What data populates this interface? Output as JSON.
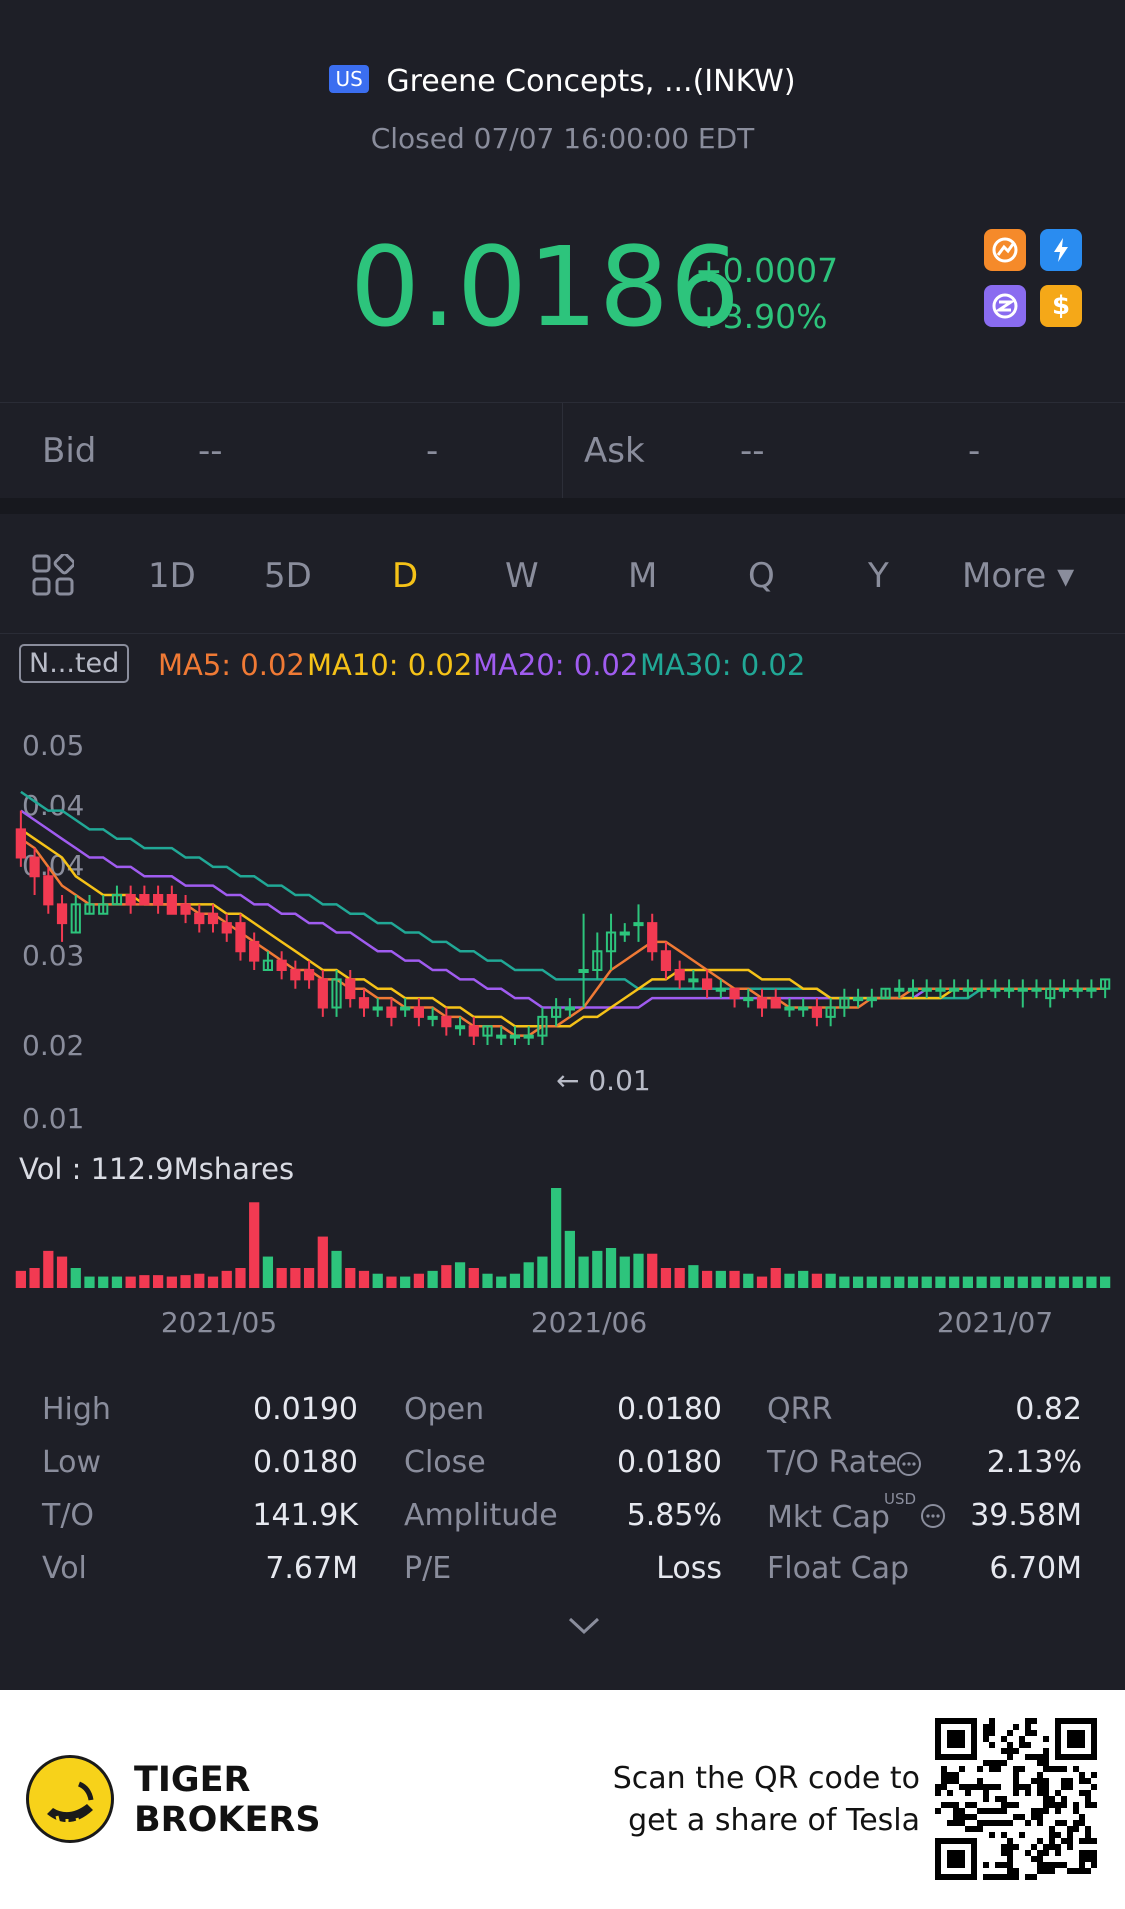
{
  "header": {
    "market_flag": "US",
    "title": "Greene Concepts, ...(INKW)",
    "status": "Closed 07/07 16:00:00 EDT",
    "price": "0.0186",
    "change_abs": "+0.0007",
    "change_pct": "+3.90%",
    "up_color": "#2dc47c",
    "badges": [
      "orange-badge-icon",
      "blue-lightning-icon",
      "purple-badge-icon",
      "dollar-icon"
    ]
  },
  "quote": {
    "bid_label": "Bid",
    "bid_price": "--",
    "bid_size": "-",
    "ask_label": "Ask",
    "ask_price": "--",
    "ask_size": "-"
  },
  "tabs": [
    "1D",
    "5D",
    "D",
    "W",
    "M",
    "Q",
    "Y",
    "More ▾"
  ],
  "active_tab": "D",
  "ma": {
    "adjust_label": "N...ted",
    "ma5": "MA5: 0.02",
    "ma10": "MA10: 0.02",
    "ma20": "MA20: 0.02",
    "ma30": "MA30: 0.02",
    "colors": {
      "ma5": "#f07a35",
      "ma10": "#f5c218",
      "ma20": "#a05cf0",
      "ma30": "#21a896"
    }
  },
  "chart_data": {
    "type": "candlestick",
    "y_ticks": [
      "0.05",
      "0.04",
      "0.04",
      "0.03",
      "0.02",
      "0.01"
    ],
    "ylim": [
      0.01,
      0.05
    ],
    "x_ticks": [
      "2021/05",
      "2021/06",
      "2021/07"
    ],
    "low_marker": "0.01",
    "high_marker": "0.04",
    "up_color": "#2dc47c",
    "down_color": "#f23a52",
    "candles": [
      [
        0.041,
        0.038,
        0.043,
        0.037
      ],
      [
        0.038,
        0.036,
        0.039,
        0.034
      ],
      [
        0.036,
        0.033,
        0.037,
        0.032
      ],
      [
        0.033,
        0.031,
        0.034,
        0.029
      ],
      [
        0.03,
        0.033,
        0.034,
        0.03
      ],
      [
        0.032,
        0.033,
        0.034,
        0.032
      ],
      [
        0.032,
        0.033,
        0.034,
        0.032
      ],
      [
        0.033,
        0.034,
        0.035,
        0.033
      ],
      [
        0.034,
        0.033,
        0.035,
        0.032
      ],
      [
        0.034,
        0.033,
        0.035,
        0.033
      ],
      [
        0.034,
        0.033,
        0.035,
        0.032
      ],
      [
        0.034,
        0.032,
        0.035,
        0.032
      ],
      [
        0.033,
        0.032,
        0.034,
        0.031
      ],
      [
        0.032,
        0.031,
        0.033,
        0.03
      ],
      [
        0.032,
        0.031,
        0.033,
        0.03
      ],
      [
        0.031,
        0.03,
        0.032,
        0.029
      ],
      [
        0.031,
        0.028,
        0.032,
        0.027
      ],
      [
        0.029,
        0.027,
        0.03,
        0.026
      ],
      [
        0.026,
        0.027,
        0.028,
        0.026
      ],
      [
        0.027,
        0.026,
        0.028,
        0.025
      ],
      [
        0.026,
        0.025,
        0.027,
        0.024
      ],
      [
        0.026,
        0.025,
        0.027,
        0.024
      ],
      [
        0.025,
        0.022,
        0.026,
        0.021
      ],
      [
        0.022,
        0.025,
        0.026,
        0.021
      ],
      [
        0.025,
        0.023,
        0.026,
        0.022
      ],
      [
        0.023,
        0.022,
        0.024,
        0.021
      ],
      [
        0.022,
        0.022,
        0.023,
        0.021
      ],
      [
        0.022,
        0.021,
        0.023,
        0.02
      ],
      [
        0.022,
        0.022,
        0.023,
        0.021
      ],
      [
        0.022,
        0.021,
        0.023,
        0.02
      ],
      [
        0.021,
        0.021,
        0.022,
        0.02
      ],
      [
        0.021,
        0.02,
        0.022,
        0.019
      ],
      [
        0.02,
        0.02,
        0.021,
        0.019
      ],
      [
        0.02,
        0.019,
        0.021,
        0.018
      ],
      [
        0.019,
        0.02,
        0.02,
        0.018
      ],
      [
        0.019,
        0.019,
        0.02,
        0.018
      ],
      [
        0.019,
        0.019,
        0.02,
        0.018
      ],
      [
        0.019,
        0.019,
        0.02,
        0.018
      ],
      [
        0.019,
        0.021,
        0.022,
        0.018
      ],
      [
        0.021,
        0.022,
        0.023,
        0.02
      ],
      [
        0.022,
        0.022,
        0.023,
        0.021
      ],
      [
        0.026,
        0.026,
        0.032,
        0.022
      ],
      [
        0.026,
        0.028,
        0.03,
        0.025
      ],
      [
        0.028,
        0.03,
        0.032,
        0.026
      ],
      [
        0.03,
        0.03,
        0.031,
        0.029
      ],
      [
        0.031,
        0.031,
        0.033,
        0.029
      ],
      [
        0.031,
        0.028,
        0.032,
        0.027
      ],
      [
        0.028,
        0.026,
        0.029,
        0.025
      ],
      [
        0.026,
        0.025,
        0.027,
        0.024
      ],
      [
        0.025,
        0.025,
        0.026,
        0.024
      ],
      [
        0.025,
        0.024,
        0.026,
        0.023
      ],
      [
        0.024,
        0.024,
        0.025,
        0.023
      ],
      [
        0.024,
        0.023,
        0.024,
        0.022
      ],
      [
        0.023,
        0.023,
        0.024,
        0.022
      ],
      [
        0.023,
        0.022,
        0.024,
        0.021
      ],
      [
        0.023,
        0.022,
        0.024,
        0.022
      ],
      [
        0.022,
        0.022,
        0.023,
        0.021
      ],
      [
        0.022,
        0.022,
        0.023,
        0.021
      ],
      [
        0.022,
        0.021,
        0.023,
        0.02
      ],
      [
        0.021,
        0.022,
        0.023,
        0.02
      ],
      [
        0.022,
        0.023,
        0.024,
        0.021
      ],
      [
        0.023,
        0.023,
        0.024,
        0.022
      ],
      [
        0.023,
        0.023,
        0.024,
        0.022
      ],
      [
        0.023,
        0.024,
        0.024,
        0.023
      ],
      [
        0.024,
        0.024,
        0.025,
        0.023
      ],
      [
        0.024,
        0.024,
        0.025,
        0.023
      ],
      [
        0.024,
        0.024,
        0.025,
        0.023
      ],
      [
        0.024,
        0.024,
        0.025,
        0.023
      ],
      [
        0.024,
        0.024,
        0.025,
        0.023
      ],
      [
        0.024,
        0.024,
        0.025,
        0.023
      ],
      [
        0.024,
        0.024,
        0.025,
        0.023
      ],
      [
        0.024,
        0.024,
        0.025,
        0.023
      ],
      [
        0.024,
        0.024,
        0.025,
        0.023
      ],
      [
        0.024,
        0.024,
        0.025,
        0.022
      ],
      [
        0.024,
        0.024,
        0.025,
        0.023
      ],
      [
        0.023,
        0.024,
        0.025,
        0.022
      ],
      [
        0.024,
        0.024,
        0.025,
        0.023
      ],
      [
        0.024,
        0.024,
        0.025,
        0.023
      ],
      [
        0.024,
        0.024,
        0.025,
        0.023
      ],
      [
        0.024,
        0.025,
        0.025,
        0.023
      ]
    ],
    "ma5": [
      0.04,
      0.039,
      0.037,
      0.035,
      0.034,
      0.033,
      0.033,
      0.033,
      0.033,
      0.033,
      0.033,
      0.033,
      0.033,
      0.032,
      0.032,
      0.031,
      0.03,
      0.029,
      0.028,
      0.027,
      0.026,
      0.026,
      0.025,
      0.025,
      0.024,
      0.024,
      0.023,
      0.023,
      0.022,
      0.022,
      0.022,
      0.021,
      0.021,
      0.02,
      0.02,
      0.02,
      0.019,
      0.019,
      0.02,
      0.02,
      0.021,
      0.022,
      0.024,
      0.026,
      0.027,
      0.028,
      0.029,
      0.029,
      0.028,
      0.027,
      0.026,
      0.025,
      0.024,
      0.024,
      0.023,
      0.023,
      0.022,
      0.022,
      0.022,
      0.022,
      0.022,
      0.022,
      0.023,
      0.023,
      0.023,
      0.024,
      0.024,
      0.024,
      0.024,
      0.024,
      0.024,
      0.024,
      0.024,
      0.024,
      0.024,
      0.024,
      0.024,
      0.024,
      0.024,
      0.024
    ],
    "ma10": [
      0.041,
      0.04,
      0.039,
      0.038,
      0.036,
      0.035,
      0.034,
      0.034,
      0.034,
      0.033,
      0.033,
      0.033,
      0.033,
      0.033,
      0.033,
      0.032,
      0.032,
      0.031,
      0.03,
      0.029,
      0.028,
      0.027,
      0.026,
      0.026,
      0.025,
      0.025,
      0.024,
      0.024,
      0.023,
      0.023,
      0.023,
      0.022,
      0.022,
      0.021,
      0.021,
      0.021,
      0.02,
      0.02,
      0.02,
      0.02,
      0.02,
      0.021,
      0.021,
      0.022,
      0.023,
      0.024,
      0.025,
      0.025,
      0.026,
      0.026,
      0.026,
      0.026,
      0.026,
      0.026,
      0.025,
      0.025,
      0.025,
      0.024,
      0.024,
      0.023,
      0.023,
      0.023,
      0.023,
      0.023,
      0.023,
      0.023,
      0.023,
      0.023,
      0.024,
      0.024,
      0.024,
      0.024,
      0.024,
      0.024,
      0.024,
      0.024,
      0.024,
      0.024,
      0.024,
      0.024
    ],
    "ma20": [
      0.043,
      0.042,
      0.041,
      0.04,
      0.039,
      0.038,
      0.038,
      0.037,
      0.037,
      0.036,
      0.036,
      0.036,
      0.035,
      0.035,
      0.035,
      0.034,
      0.034,
      0.033,
      0.033,
      0.032,
      0.032,
      0.031,
      0.031,
      0.03,
      0.03,
      0.029,
      0.028,
      0.028,
      0.027,
      0.027,
      0.026,
      0.026,
      0.025,
      0.025,
      0.024,
      0.024,
      0.023,
      0.023,
      0.022,
      0.022,
      0.022,
      0.022,
      0.022,
      0.022,
      0.022,
      0.022,
      0.023,
      0.023,
      0.023,
      0.023,
      0.023,
      0.023,
      0.023,
      0.023,
      0.023,
      0.023,
      0.023,
      0.023,
      0.023,
      0.023,
      0.023,
      0.023,
      0.023,
      0.023,
      0.023,
      0.023,
      0.024,
      0.024,
      0.024,
      0.024,
      0.024,
      0.024,
      0.024,
      0.024,
      0.024,
      0.024,
      0.024,
      0.024,
      0.024,
      0.024
    ],
    "ma30": [
      0.045,
      0.044,
      0.043,
      0.043,
      0.042,
      0.041,
      0.041,
      0.04,
      0.04,
      0.039,
      0.039,
      0.039,
      0.038,
      0.038,
      0.037,
      0.037,
      0.036,
      0.036,
      0.035,
      0.035,
      0.034,
      0.034,
      0.033,
      0.033,
      0.032,
      0.032,
      0.031,
      0.031,
      0.03,
      0.03,
      0.029,
      0.029,
      0.028,
      0.028,
      0.027,
      0.027,
      0.026,
      0.026,
      0.026,
      0.025,
      0.025,
      0.025,
      0.025,
      0.025,
      0.025,
      0.024,
      0.024,
      0.024,
      0.024,
      0.024,
      0.024,
      0.024,
      0.024,
      0.024,
      0.024,
      0.024,
      0.024,
      0.024,
      0.024,
      0.023,
      0.023,
      0.023,
      0.023,
      0.023,
      0.023,
      0.023,
      0.023,
      0.023,
      0.023,
      0.023,
      0.024,
      0.024,
      0.024,
      0.024,
      0.024,
      0.024,
      0.024,
      0.024,
      0.024,
      0.024
    ],
    "volume_label": "Vol  : 112.9Mshares",
    "volumes": [
      12,
      14,
      26,
      22,
      14,
      8,
      8,
      8,
      8,
      9,
      9,
      8,
      9,
      10,
      8,
      12,
      14,
      60,
      22,
      14,
      14,
      14,
      36,
      26,
      14,
      12,
      10,
      8,
      8,
      10,
      12,
      16,
      18,
      14,
      10,
      8,
      10,
      18,
      22,
      70,
      40,
      22,
      26,
      28,
      22,
      24,
      24,
      14,
      14,
      16,
      12,
      12,
      12,
      10,
      8,
      14,
      10,
      12,
      10,
      10,
      8,
      8,
      8,
      8,
      8,
      8,
      8,
      8,
      8,
      8,
      8,
      8,
      8,
      8,
      8,
      8,
      8,
      8,
      8,
      8
    ]
  },
  "stats": [
    {
      "label": "High",
      "value": "0.0190"
    },
    {
      "label": "Open",
      "value": "0.0180"
    },
    {
      "label": "QRR",
      "value": "0.82"
    },
    {
      "label": "Low",
      "value": "0.0180"
    },
    {
      "label": "Close",
      "value": "0.0180"
    },
    {
      "label": "T/O Rate",
      "value": "2.13%"
    },
    {
      "label": "T/O",
      "value": "141.9K"
    },
    {
      "label": "Amplitude",
      "value": "5.85%"
    },
    {
      "label": "Mkt Cap",
      "value": "39.58M"
    },
    {
      "label": "Vol",
      "value": "7.67M"
    },
    {
      "label": "P/E",
      "value": "Loss"
    },
    {
      "label": "Float Cap",
      "value": "6.70M"
    }
  ],
  "mkt_cap_currency": "USD",
  "footer": {
    "brand_line1": "TIGER",
    "brand_line2": "BROKERS",
    "scan_line1": "Scan the QR code to",
    "scan_line2": "get a share of Tesla"
  }
}
